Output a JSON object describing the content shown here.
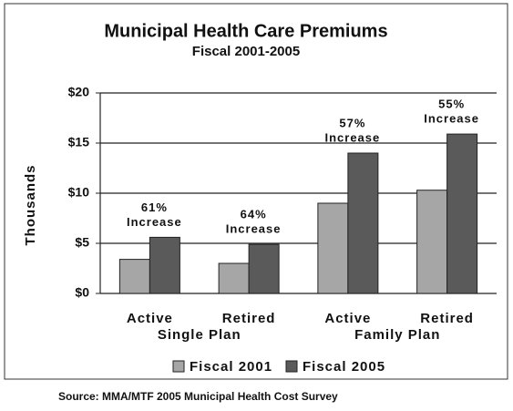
{
  "chart_data": {
    "type": "bar",
    "title": "Municipal Health Care Premiums",
    "subtitle": "Fiscal 2001-2005",
    "y_label": "Thousands",
    "categories": [
      "Active",
      "Retired",
      "Active",
      "Retired"
    ],
    "groups": [
      "Single Plan",
      "Family Plan"
    ],
    "series": [
      {
        "name": "Fiscal 2001",
        "color": "#a6a6a6",
        "values": [
          3.4,
          3.0,
          9.0,
          10.3
        ]
      },
      {
        "name": "Fiscal 2005",
        "color": "#5a5a5a",
        "values": [
          5.6,
          4.9,
          14.0,
          15.9
        ]
      }
    ],
    "annotations": [
      [
        "61%",
        "Increase"
      ],
      [
        "64%",
        "Increase"
      ],
      [
        "57%",
        "Increase"
      ],
      [
        "55%",
        "Increase"
      ]
    ],
    "ylim": [
      0,
      20
    ],
    "yticks": [
      {
        "value": 0,
        "label": "$0"
      },
      {
        "value": 5,
        "label": "$5"
      },
      {
        "value": 10,
        "label": "$10"
      },
      {
        "value": 15,
        "label": "$15"
      },
      {
        "value": 20,
        "label": "$20"
      }
    ],
    "grid": true,
    "legend": "bottom",
    "source": "Source:  MMA/MTF 2005 Municipal Health Cost Survey"
  }
}
